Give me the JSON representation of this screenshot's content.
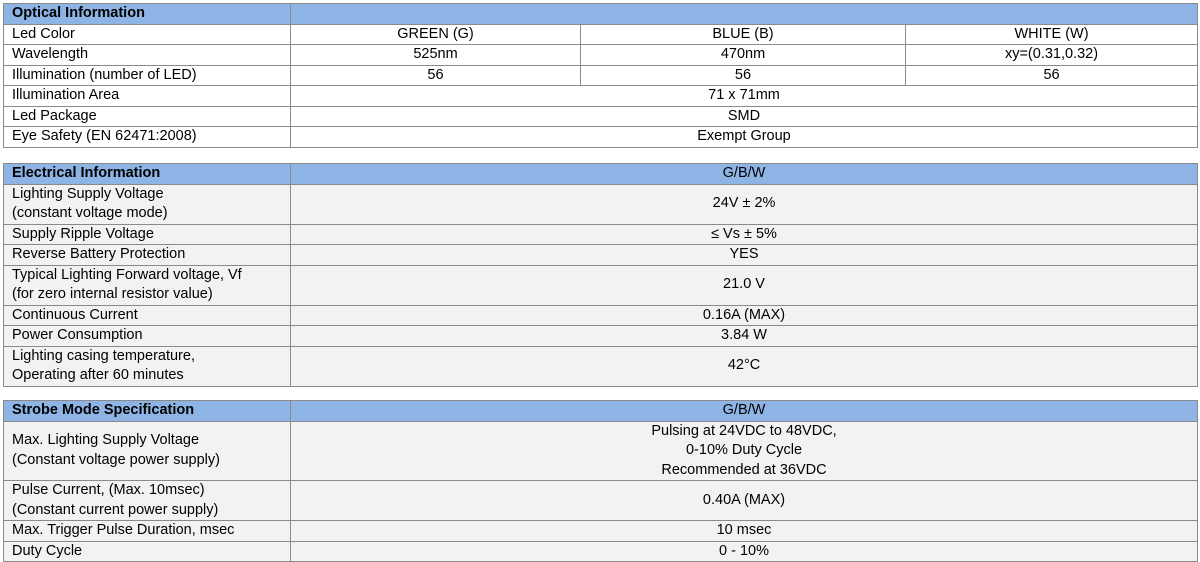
{
  "tables": [
    {
      "title": "Optical Information",
      "rows": [
        {
          "label": [
            "Led Color"
          ],
          "cells": [
            [
              "GREEN (G)"
            ],
            [
              "BLUE (B)"
            ],
            [
              "WHITE (W)"
            ]
          ]
        },
        {
          "label": [
            "Wavelength"
          ],
          "cells": [
            [
              "525nm"
            ],
            [
              "470nm"
            ],
            [
              "xy=(0.31,0.32)"
            ]
          ]
        },
        {
          "label": [
            "Illumination (number of LED)"
          ],
          "cells": [
            [
              "56"
            ],
            [
              "56"
            ],
            [
              "56"
            ]
          ]
        },
        {
          "label": [
            "Illumination Area"
          ],
          "cells": [
            [
              "71 x 71mm"
            ]
          ]
        },
        {
          "label": [
            "Led Package"
          ],
          "cells": [
            [
              "SMD"
            ]
          ]
        },
        {
          "label": [
            "Eye Safety (EN 62471:2008)"
          ],
          "cells": [
            [
              "Exempt Group"
            ]
          ]
        }
      ]
    },
    {
      "title": "Electrical Information",
      "header_value": "G/B/W",
      "rows": [
        {
          "label": [
            "Lighting Supply Voltage",
            "(constant voltage mode)"
          ],
          "cells": [
            [
              "24V ± 2%"
            ]
          ]
        },
        {
          "label": [
            "Supply Ripple Voltage"
          ],
          "cells": [
            [
              "≤ Vs ± 5%"
            ]
          ]
        },
        {
          "label": [
            "Reverse Battery Protection"
          ],
          "cells": [
            [
              "YES"
            ]
          ]
        },
        {
          "label": [
            "Typical Lighting Forward voltage, Vf",
            "(for zero internal resistor value)"
          ],
          "cells": [
            [
              "21.0 V"
            ]
          ]
        },
        {
          "label": [
            "Continuous Current"
          ],
          "cells": [
            [
              "0.16A (MAX)"
            ]
          ]
        },
        {
          "label": [
            "Power Consumption"
          ],
          "cells": [
            [
              "3.84 W"
            ]
          ]
        },
        {
          "label": [
            "Lighting casing temperature,",
            "Operating after 60 minutes"
          ],
          "cells": [
            [
              "42°C"
            ]
          ]
        }
      ]
    },
    {
      "title": "Strobe Mode Specification",
      "header_value": "G/B/W",
      "rows": [
        {
          "label": [
            "Max. Lighting Supply Voltage",
            "(Constant voltage power supply)"
          ],
          "cells": [
            [
              "Pulsing at 24VDC to 48VDC,",
              "0-10% Duty Cycle",
              "Recommended at 36VDC"
            ]
          ]
        },
        {
          "label": [
            "Pulse Current, (Max. 10msec)",
            "(Constant current power supply)"
          ],
          "cells": [
            [
              "0.40A (MAX)"
            ]
          ]
        },
        {
          "label": [
            "Max. Trigger Pulse Duration, msec"
          ],
          "cells": [
            [
              "10 msec"
            ]
          ]
        },
        {
          "label": [
            "Duty Cycle"
          ],
          "cells": [
            [
              "0 - 10%"
            ]
          ]
        }
      ]
    }
  ]
}
